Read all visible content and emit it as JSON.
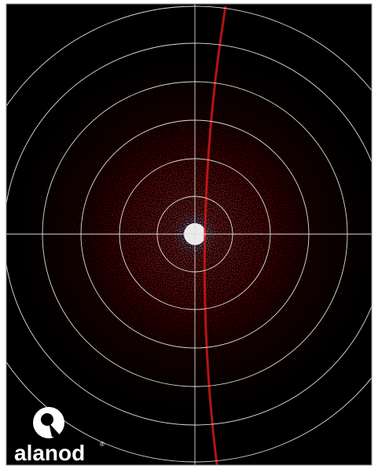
{
  "logo": {
    "text": "alanod",
    "mark": "®"
  }
}
